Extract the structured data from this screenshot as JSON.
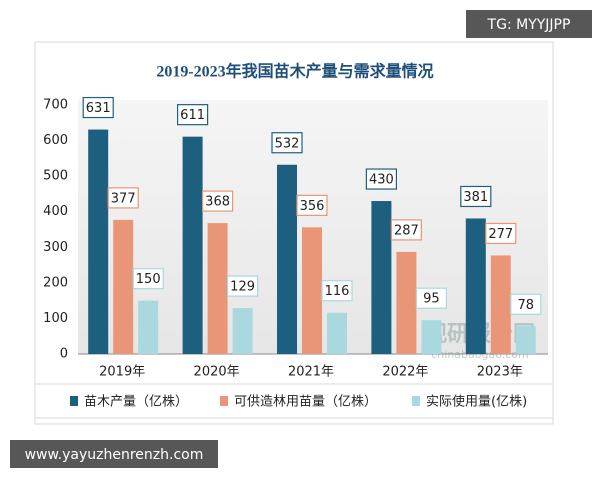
{
  "chart_data": {
    "type": "bar",
    "title": "2019-2023年我国苗木产量与需求量情况",
    "categories": [
      "2019年",
      "2020年",
      "2021年",
      "2022年",
      "2023年"
    ],
    "series": [
      {
        "name": "苗木产量（亿株）",
        "color": "#1d5f7f",
        "values": [
          631,
          611,
          532,
          430,
          381
        ]
      },
      {
        "name": "可供造林用苗量（亿株）",
        "color": "#e99577",
        "values": [
          377,
          368,
          356,
          287,
          277
        ]
      },
      {
        "name": "实际使用量(亿株)",
        "color": "#a9d9df",
        "values": [
          150,
          129,
          116,
          95,
          78
        ]
      }
    ],
    "ylim": [
      0,
      700
    ],
    "yticks": [
      0,
      100,
      200,
      300,
      400,
      500,
      600,
      700
    ],
    "grid": false,
    "legend": "bottom"
  },
  "overlays": {
    "top_tag": "TG: MYYJJPP",
    "bottom_tag": "www.yayuzhenrenzh.com",
    "logo_text": "观研报告网",
    "logo_url": "chinabaogao.com"
  }
}
